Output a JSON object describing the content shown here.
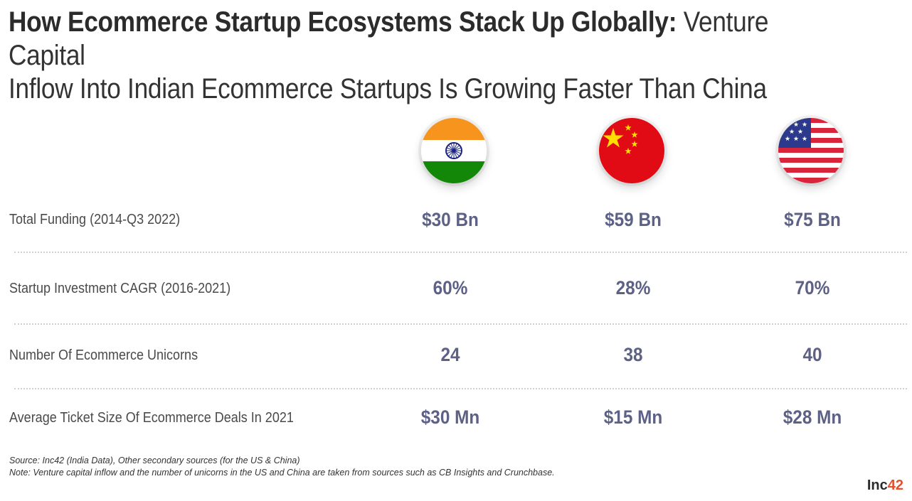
{
  "title": {
    "bold": "How Ecommerce Startup Ecosystems Stack Up Globally:",
    "light_line1": "Venture Capital",
    "light_line2": "Inflow Into Indian Ecommerce Startups Is Growing Faster Than China"
  },
  "columns": [
    {
      "flag_icon": "india-flag-icon"
    },
    {
      "flag_icon": "china-flag-icon"
    },
    {
      "flag_icon": "usa-flag-icon"
    }
  ],
  "chart_data": {
    "type": "table",
    "columns": [
      "India",
      "China",
      "US"
    ],
    "rows": [
      {
        "label": "Total Funding (2014-Q3 2022)",
        "values": [
          "$30 Bn",
          "$59 Bn",
          "$75 Bn"
        ]
      },
      {
        "label": "Startup Investment CAGR (2016-2021)",
        "values": [
          "60%",
          "28%",
          "70%"
        ]
      },
      {
        "label": "Number Of Ecommerce Unicorns",
        "values": [
          "24",
          "38",
          "40"
        ]
      },
      {
        "label": "Average Ticket Size Of Ecommerce Deals In 2021",
        "values": [
          "$30 Mn",
          "$15 Mn",
          "$28 Mn"
        ]
      }
    ]
  },
  "footer": {
    "source": "Source: Inc42 (India Data), Other secondary sources (for the US & China)",
    "note": "Note: Venture capital inflow and the number of unicorns in the US and China are taken from sources such as CB Insights and Crunchbase.",
    "brand_text": "Inc",
    "brand_num": "42"
  },
  "colors": {
    "value_text": "#5c6185",
    "brand_accent": "#e2512f"
  }
}
